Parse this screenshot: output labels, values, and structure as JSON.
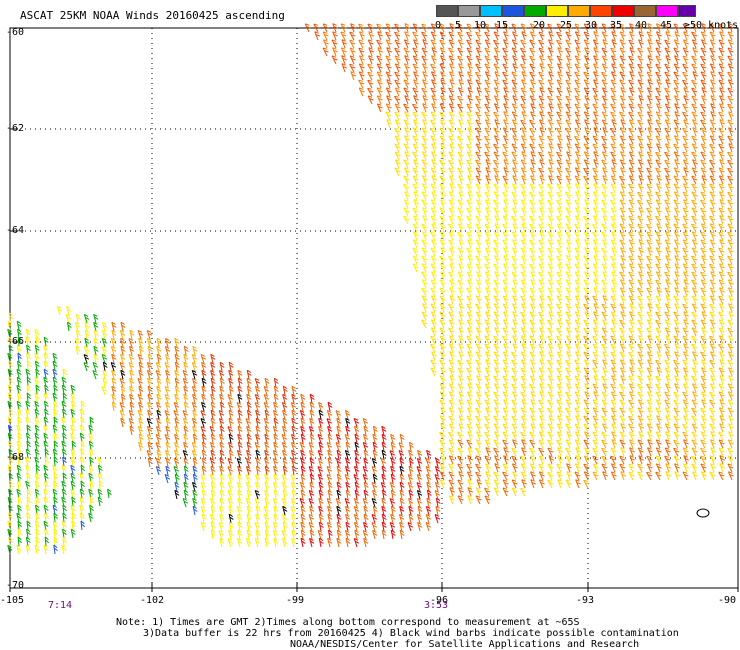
{
  "title": "ASCAT 25KM NOAA Winds 20160425 ascending",
  "legend": {
    "colors": [
      "#555555",
      "#888888",
      "#00bfff",
      "#0055dd",
      "#00aa00",
      "#ffee00",
      "#ffaa00",
      "#ff5500",
      "#ee0000",
      "#996633",
      "#ff00ff",
      "#6600aa"
    ],
    "labels": [
      "0",
      "5",
      "10",
      "15",
      "20",
      "25",
      "30",
      "35",
      "40",
      "45",
      "≥50 knots"
    ]
  },
  "lat_labels": [
    "-60",
    "-62",
    "-64",
    "-66",
    "-68",
    "-70"
  ],
  "lon_labels": [
    "-105",
    "-102",
    "-99",
    "-96",
    "-93",
    "-90"
  ],
  "times": [
    "7:14",
    "3:53"
  ],
  "notes": {
    "line1": "Note: 1) Times are GMT 2)Times along bottom correspond to measurement at ~65S",
    "line2": "3)Data buffer is 22 hrs from 20160425 4) Black wind barbs indicate possible contamination",
    "line3": "NOAA/NESDIS/Center for Satellite Applications and Research"
  }
}
